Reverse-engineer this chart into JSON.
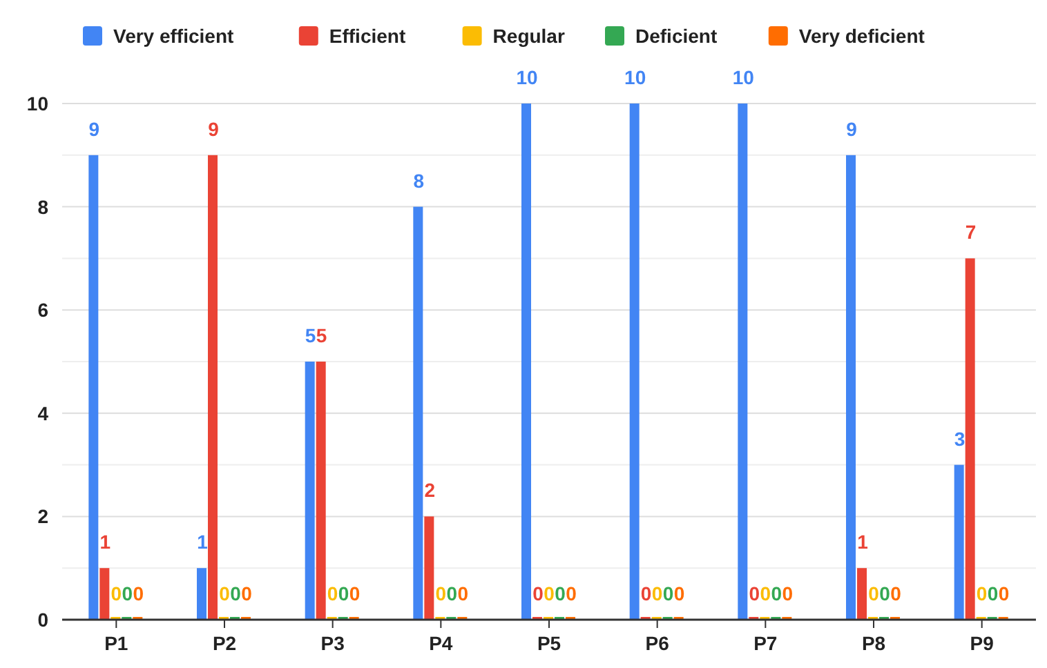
{
  "chart_data": {
    "type": "bar",
    "categories": [
      "P1",
      "P2",
      "P3",
      "P4",
      "P5",
      "P6",
      "P7",
      "P8",
      "P9"
    ],
    "series": [
      {
        "name": "Very efficient",
        "color": "#4285f4",
        "values": [
          9,
          1,
          5,
          8,
          10,
          10,
          10,
          9,
          3
        ]
      },
      {
        "name": "Efficient",
        "color": "#ea4335",
        "values": [
          1,
          9,
          5,
          2,
          0,
          0,
          0,
          1,
          7
        ]
      },
      {
        "name": "Regular",
        "color": "#fbbc04",
        "values": [
          0,
          0,
          0,
          0,
          0,
          0,
          0,
          0,
          0
        ]
      },
      {
        "name": "Deficient",
        "color": "#34a853",
        "values": [
          0,
          0,
          0,
          0,
          0,
          0,
          0,
          0,
          0
        ]
      },
      {
        "name": "Very deficient",
        "color": "#ff6d01",
        "values": [
          0,
          0,
          0,
          0,
          0,
          0,
          0,
          0,
          0
        ]
      }
    ],
    "ylim": [
      0,
      10
    ],
    "yticks": [
      0,
      {
        "value": 1,
        "label": null
      },
      2,
      {
        "value": 3,
        "label": null
      },
      4,
      {
        "value": 5,
        "label": null
      },
      6,
      {
        "value": 7,
        "label": null
      },
      8,
      {
        "value": 9,
        "label": null
      },
      10
    ],
    "grid": "y",
    "legend": "top",
    "data_labels": true
  }
}
